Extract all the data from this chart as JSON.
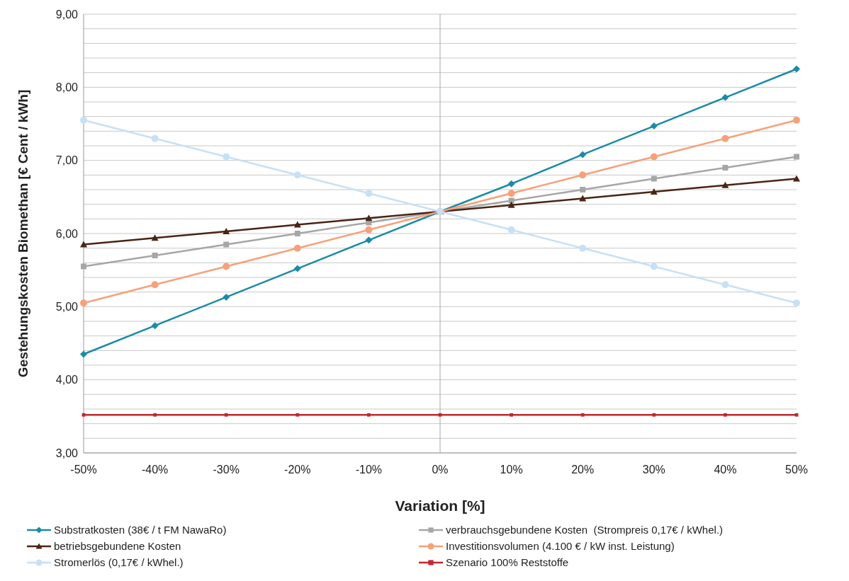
{
  "chart_data": {
    "type": "line",
    "xlabel": "Variation [%]",
    "ylabel": "Gestehungskosten Biomethan [€ Cent / kWh]",
    "categories": [
      "-50%",
      "-40%",
      "-30%",
      "-20%",
      "-10%",
      "0%",
      "10%",
      "20%",
      "30%",
      "40%",
      "50%"
    ],
    "series": [
      {
        "name": "Substratkosten (38€ / t FM NawaRo)",
        "color": "#1b8ba6",
        "marker": "diamond",
        "values": [
          4.35,
          4.74,
          5.13,
          5.52,
          5.91,
          6.3,
          6.68,
          7.08,
          7.47,
          7.86,
          8.25
        ]
      },
      {
        "name": "verbrauchsgebundene Kosten  (Strompreis 0,17€ / kWhel.)",
        "color": "#a6a6a6",
        "marker": "square",
        "values": [
          5.55,
          5.7,
          5.85,
          6.0,
          6.15,
          6.3,
          6.45,
          6.6,
          6.75,
          6.9,
          7.05
        ]
      },
      {
        "name": "betriebsgebundene Kosten",
        "color": "#4a2414",
        "marker": "triangle",
        "values": [
          5.85,
          5.94,
          6.03,
          6.12,
          6.21,
          6.3,
          6.39,
          6.48,
          6.57,
          6.66,
          6.75
        ]
      },
      {
        "name": "Investitionsvolumen (4.100 € / kW inst. Leistung)",
        "color": "#f7a07a",
        "marker": "circle",
        "values": [
          5.05,
          5.3,
          5.55,
          5.8,
          6.05,
          6.3,
          6.55,
          6.8,
          7.05,
          7.3,
          7.55
        ]
      },
      {
        "name": "Stromerlös (0,17€ / kWhel.)",
        "color": "#c6e1f5",
        "marker": "circle",
        "values": [
          7.55,
          7.3,
          7.05,
          6.8,
          6.55,
          6.3,
          6.05,
          5.8,
          5.55,
          5.3,
          5.05
        ]
      },
      {
        "name": "Szenario 100% Reststoffe",
        "color": "#c0282d",
        "marker": "square",
        "values": [
          3.52,
          3.52,
          3.52,
          3.52,
          3.52,
          3.52,
          3.52,
          3.52,
          3.52,
          3.52,
          3.52
        ]
      }
    ],
    "ylim": [
      3,
      9
    ],
    "yticks": [
      {
        "value": 3,
        "label": "3,00"
      },
      {
        "value": 3.2,
        "label": null
      },
      {
        "value": 3.4,
        "label": null
      },
      {
        "value": 3.6,
        "label": null
      },
      {
        "value": 3.8,
        "label": null
      },
      {
        "value": 4,
        "label": "4,00"
      },
      {
        "value": 4.2,
        "label": null
      },
      {
        "value": 4.4,
        "label": null
      },
      {
        "value": 4.6,
        "label": null
      },
      {
        "value": 4.8,
        "label": null
      },
      {
        "value": 5,
        "label": "5,00"
      },
      {
        "value": 5.2,
        "label": null
      },
      {
        "value": 5.4,
        "label": null
      },
      {
        "value": 5.6,
        "label": null
      },
      {
        "value": 5.8,
        "label": null
      },
      {
        "value": 6,
        "label": "6,00"
      },
      {
        "value": 6.2,
        "label": null
      },
      {
        "value": 6.4,
        "label": null
      },
      {
        "value": 6.6,
        "label": null
      },
      {
        "value": 6.8,
        "label": null
      },
      {
        "value": 7,
        "label": "7,00"
      },
      {
        "value": 7.2,
        "label": null
      },
      {
        "value": 7.4,
        "label": null
      },
      {
        "value": 7.6,
        "label": null
      },
      {
        "value": 7.8,
        "label": null
      },
      {
        "value": 8,
        "label": "8,00"
      },
      {
        "value": 8.2,
        "label": null
      },
      {
        "value": 8.4,
        "label": null
      },
      {
        "value": 8.6,
        "label": null
      },
      {
        "value": 8.8,
        "label": null
      },
      {
        "value": 9,
        "label": "9,00"
      }
    ],
    "ref_lines": [
      {
        "axis": "x",
        "value": "0%",
        "color": "#a6a6a6"
      }
    ],
    "grid": "y",
    "legend": "bottom",
    "line_style": "solid"
  }
}
